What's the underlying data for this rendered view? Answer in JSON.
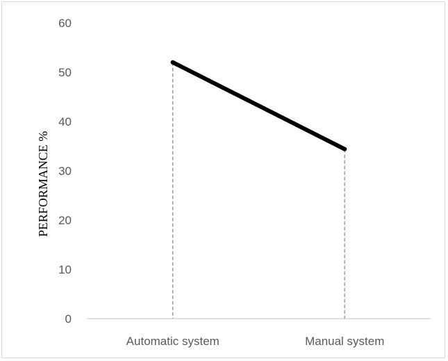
{
  "chart_data": {
    "type": "line",
    "categories": [
      "Automatic system",
      "Manual system"
    ],
    "series": [
      {
        "values": [
          52,
          34.4
        ]
      }
    ],
    "title": "",
    "xlabel": "",
    "ylabel": "PERFORMANCE %",
    "ylim": [
      0,
      60
    ],
    "yticks": [
      0,
      10,
      20,
      30,
      40,
      50,
      60
    ],
    "grid": false,
    "drop_lines": true,
    "line_color": "#000000",
    "drop_line_color": "#808080",
    "axis_color": "#bfbfbf"
  }
}
